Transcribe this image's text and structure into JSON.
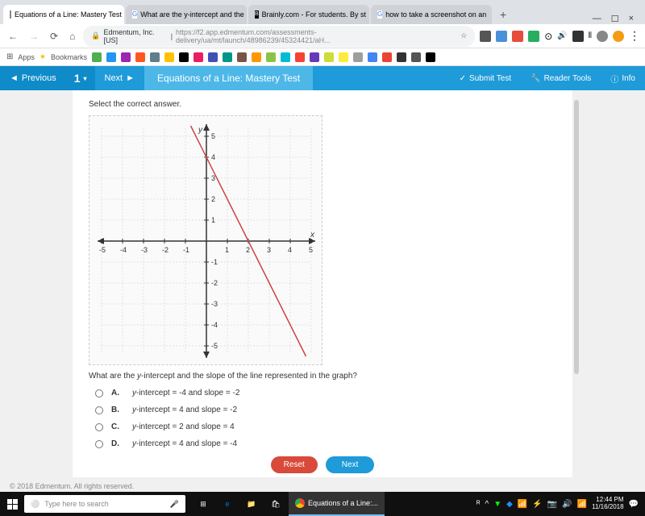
{
  "tabs": [
    {
      "title": "Equations of a Line: Mastery Test",
      "icon_bg": "#ffffff",
      "icon_border": "#888"
    },
    {
      "title": "What are the y-intercept and the",
      "icon_bg": "#4285f4"
    },
    {
      "title": "Brainly.com - For students. By st",
      "icon_bg": "#000000"
    },
    {
      "title": "how to take a screenshot on an",
      "icon_bg": "#4285f4"
    }
  ],
  "url": {
    "host": "Edmentum, Inc. [US]",
    "path": "https://f2.app.edmentum.com/assessments-delivery/ua/mt/launch/48986239/45324421/aH..."
  },
  "bookmarks": {
    "apps": "Apps",
    "bm": "Bookmarks"
  },
  "appbar": {
    "prev": "Previous",
    "next": "Next",
    "num": "1",
    "title": "Equations of a Line: Mastery Test",
    "submit": "Submit Test",
    "tools": "Reader Tools",
    "info": "Info"
  },
  "q": {
    "prompt": "Select the correct answer.",
    "question_pre": "What are the ",
    "question_ital": "y",
    "question_post": "-intercept and the slope of the line represented in the graph?",
    "options": [
      {
        "letter": "A.",
        "text": "y-intercept = -4 and slope = -2"
      },
      {
        "letter": "B.",
        "text": "y-intercept = 4 and slope = -2"
      },
      {
        "letter": "C.",
        "text": "y-intercept = 2 and slope = 4"
      },
      {
        "letter": "D.",
        "text": "y-intercept = 4 and slope = -4"
      }
    ],
    "reset": "Reset",
    "next": "Next"
  },
  "graph": {
    "xmin": -5,
    "xmax": 5,
    "ymin": -5,
    "ymax": 5,
    "line_x1": -0.75,
    "line_y1": 5.5,
    "line_x2": 4.75,
    "line_y2": -5.5,
    "line_color": "#c44444"
  },
  "footer": "© 2018 Edmentum. All rights reserved.",
  "taskbar": {
    "search": "Type here to search",
    "app": "Equations of a Line:...",
    "time": "12:44 PM",
    "date": "11/16/2018"
  }
}
